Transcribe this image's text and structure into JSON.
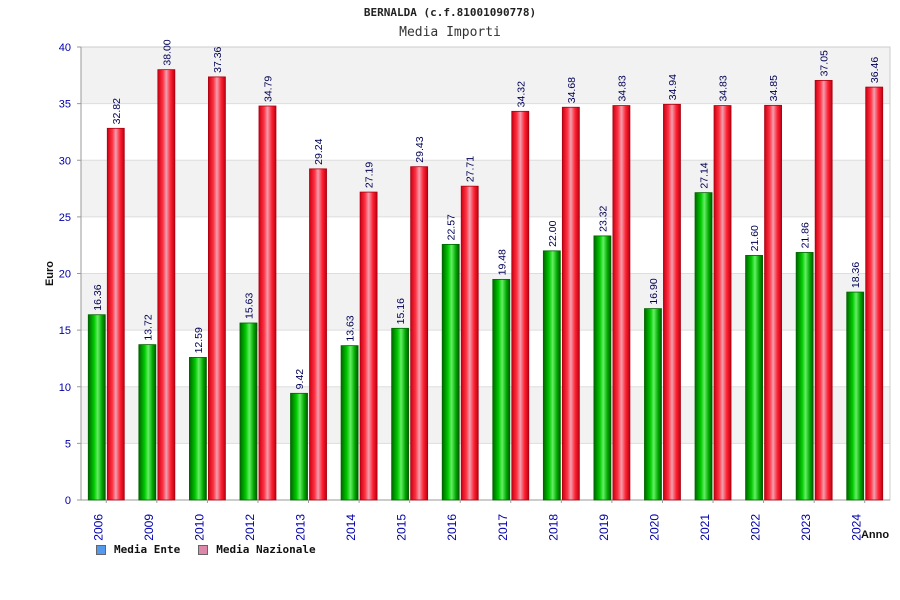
{
  "chart_data": {
    "type": "bar",
    "title": "BERNALDA (c.f.81001090778)",
    "subtitle": "Media Importi",
    "xlabel": "Anno",
    "ylabel": "Euro",
    "ylim": [
      0,
      40
    ],
    "yticks": [
      0,
      5,
      10,
      15,
      20,
      25,
      30,
      35,
      40
    ],
    "grid": true,
    "legend_position": "bottom-left",
    "categories": [
      "2006",
      "2009",
      "2010",
      "2012",
      "2013",
      "2014",
      "2015",
      "2016",
      "2017",
      "2018",
      "2019",
      "2020",
      "2021",
      "2022",
      "2023",
      "2024"
    ],
    "series": [
      {
        "name": "Media Ente",
        "color": "#00b000",
        "legend_color": "#5599ee",
        "values": [
          16.36,
          13.72,
          12.59,
          15.63,
          9.42,
          13.63,
          15.16,
          22.57,
          19.48,
          22.0,
          23.32,
          16.9,
          27.14,
          21.6,
          21.86,
          18.36
        ],
        "labels": [
          "16.36",
          "13.72",
          "12.59",
          "15.63",
          "9.42",
          "13.63",
          "15.16",
          "22.57",
          "19.48",
          "22.00",
          "23.32",
          "16.90",
          "27.14",
          "21.60",
          "21.86",
          "18.36"
        ]
      },
      {
        "name": "Media Nazionale",
        "color": "#ee1122",
        "legend_color": "#dd88aa",
        "values": [
          32.82,
          38.0,
          37.36,
          34.79,
          29.24,
          27.19,
          29.43,
          27.71,
          34.32,
          34.68,
          34.83,
          34.94,
          34.83,
          34.85,
          37.05,
          36.46
        ],
        "labels": [
          "32.82",
          "38.00",
          "37.36",
          "34.79",
          "29.24",
          "27.19",
          "29.43",
          "27.71",
          "34.32",
          "34.68",
          "34.83",
          "34.94",
          "34.83",
          "34.85",
          "37.05",
          "36.46"
        ]
      }
    ]
  }
}
